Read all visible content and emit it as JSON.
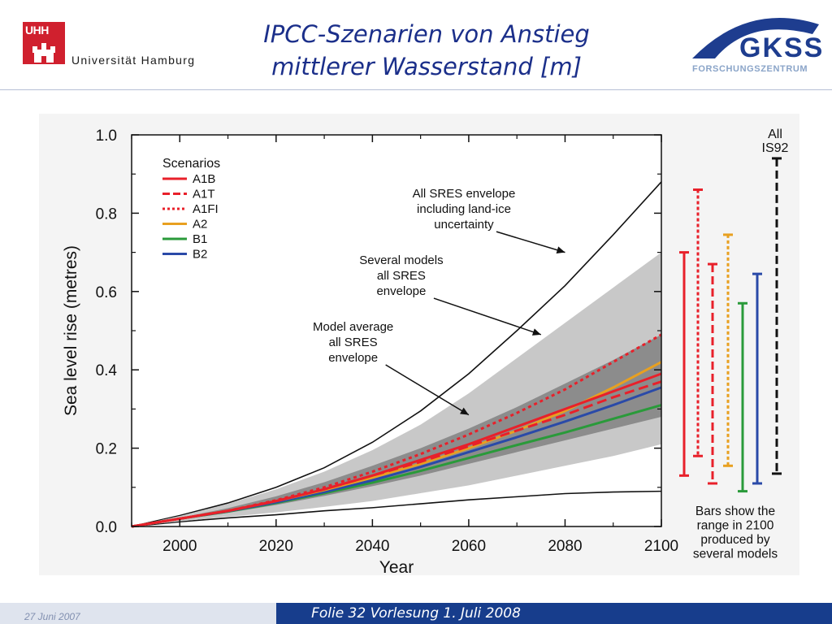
{
  "header": {
    "university_abbr": "UHH",
    "university_name": "Universität Hamburg",
    "title_line1": "IPCC-Szenarien von Anstieg",
    "title_line2": "mittlerer Wasserstand [m]",
    "gkss_name": "GKSS",
    "gkss_sub": "FORSCHUNGSZENTRUM"
  },
  "footer": {
    "date": "27 Juni 2007",
    "slide_label": "Folie 32 Vorlesung 1. Juli 2008"
  },
  "colors": {
    "A1B": "#e8202a",
    "A1T": "#e8202a",
    "A1FI": "#e8202a",
    "A2": "#e8a020",
    "B1": "#2a9a3a",
    "B2": "#2a4aa8",
    "IS92": "#111111",
    "envelope": "#c8c8c8",
    "model_envelope": "#8c8c8c"
  },
  "chart_data": {
    "type": "line",
    "xlabel": "Year",
    "ylabel": "Sea level rise (metres)",
    "xlim": [
      1990,
      2100
    ],
    "ylim": [
      0.0,
      1.0
    ],
    "xticks": [
      "2000",
      "2020",
      "2040",
      "2060",
      "2080",
      "2100"
    ],
    "yticks": [
      "0.0",
      "0.2",
      "0.4",
      "0.6",
      "0.8",
      "1.0"
    ],
    "legend_title": "Scenarios",
    "legend_position": "top-left",
    "x": [
      1990,
      2000,
      2010,
      2020,
      2030,
      2040,
      2050,
      2060,
      2070,
      2080,
      2090,
      2100
    ],
    "series": [
      {
        "name": "A1B",
        "style": "solid",
        "values": [
          0,
          0.02,
          0.04,
          0.065,
          0.095,
          0.13,
          0.17,
          0.21,
          0.255,
          0.3,
          0.345,
          0.39
        ]
      },
      {
        "name": "A1T",
        "style": "dashed",
        "values": [
          0,
          0.02,
          0.04,
          0.065,
          0.095,
          0.13,
          0.165,
          0.205,
          0.245,
          0.285,
          0.33,
          0.37
        ]
      },
      {
        "name": "A1FI",
        "style": "dotted",
        "values": [
          0,
          0.02,
          0.04,
          0.067,
          0.1,
          0.14,
          0.185,
          0.235,
          0.29,
          0.35,
          0.42,
          0.49
        ]
      },
      {
        "name": "A2",
        "style": "solid",
        "values": [
          0,
          0.02,
          0.04,
          0.065,
          0.093,
          0.125,
          0.16,
          0.2,
          0.245,
          0.295,
          0.355,
          0.42
        ]
      },
      {
        "name": "B1",
        "style": "solid",
        "values": [
          0,
          0.02,
          0.038,
          0.06,
          0.085,
          0.112,
          0.142,
          0.175,
          0.208,
          0.24,
          0.275,
          0.31
        ]
      },
      {
        "name": "B2",
        "style": "solid",
        "values": [
          0,
          0.02,
          0.039,
          0.062,
          0.088,
          0.118,
          0.152,
          0.19,
          0.228,
          0.268,
          0.31,
          0.355
        ]
      }
    ],
    "envelopes": {
      "sres_with_land_ice_upper": [
        0,
        0.028,
        0.06,
        0.1,
        0.15,
        0.215,
        0.295,
        0.39,
        0.5,
        0.615,
        0.745,
        0.88
      ],
      "sres_with_land_ice_lower": [
        0,
        0.012,
        0.022,
        0.03,
        0.04,
        0.048,
        0.058,
        0.068,
        0.076,
        0.084,
        0.088,
        0.09
      ],
      "several_models_upper": [
        0,
        0.027,
        0.058,
        0.095,
        0.14,
        0.195,
        0.26,
        0.34,
        0.43,
        0.52,
        0.61,
        0.7
      ],
      "several_models_lower": [
        0,
        0.013,
        0.025,
        0.036,
        0.05,
        0.065,
        0.085,
        0.105,
        0.13,
        0.155,
        0.18,
        0.21
      ],
      "model_average_upper": [
        0,
        0.022,
        0.047,
        0.077,
        0.113,
        0.155,
        0.2,
        0.25,
        0.305,
        0.365,
        0.425,
        0.49
      ],
      "model_average_lower": [
        0,
        0.018,
        0.035,
        0.055,
        0.078,
        0.103,
        0.13,
        0.16,
        0.19,
        0.22,
        0.25,
        0.28
      ]
    },
    "annotations": [
      {
        "lines": [
          "All SRES envelope",
          "including land-ice",
          "uncertainty"
        ],
        "x": 2059,
        "y": 0.84,
        "target_x": 2080,
        "target_y": 0.7
      },
      {
        "lines": [
          "Several models",
          "all SRES",
          "envelope"
        ],
        "x": 2046,
        "y": 0.67,
        "target_x": 2075,
        "target_y": 0.49
      },
      {
        "lines": [
          "Model average",
          "all SRES",
          "envelope"
        ],
        "x": 2036,
        "y": 0.5,
        "target_x": 2060,
        "target_y": 0.285
      }
    ],
    "range_bars": {
      "header": [
        "All",
        "IS92"
      ],
      "caption": [
        "Bars show the",
        "range in 2100",
        "produced by",
        "several models"
      ],
      "bars": [
        {
          "name": "A1B",
          "style": "solid",
          "low": 0.13,
          "high": 0.7
        },
        {
          "name": "A1FI",
          "style": "dotted",
          "low": 0.18,
          "high": 0.86
        },
        {
          "name": "A1T",
          "style": "dashed",
          "low": 0.11,
          "high": 0.67
        },
        {
          "name": "A2",
          "style": "dotted",
          "low": 0.155,
          "high": 0.745
        },
        {
          "name": "B1",
          "style": "solid",
          "low": 0.09,
          "high": 0.57
        },
        {
          "name": "B2",
          "style": "solid",
          "low": 0.11,
          "high": 0.645
        },
        {
          "name": "IS92",
          "style": "dashed",
          "low": 0.135,
          "high": 0.94
        }
      ]
    }
  }
}
